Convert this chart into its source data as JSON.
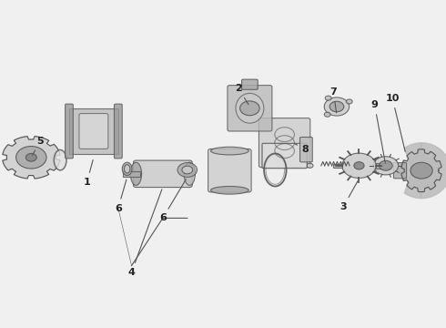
{
  "background_color": "#f0f0f0",
  "title": "",
  "fig_width": 4.9,
  "fig_height": 3.6,
  "dpi": 100,
  "line_color": "#555555",
  "label_fontsize": 8,
  "label_color": "#222222",
  "line_width": 0.8
}
